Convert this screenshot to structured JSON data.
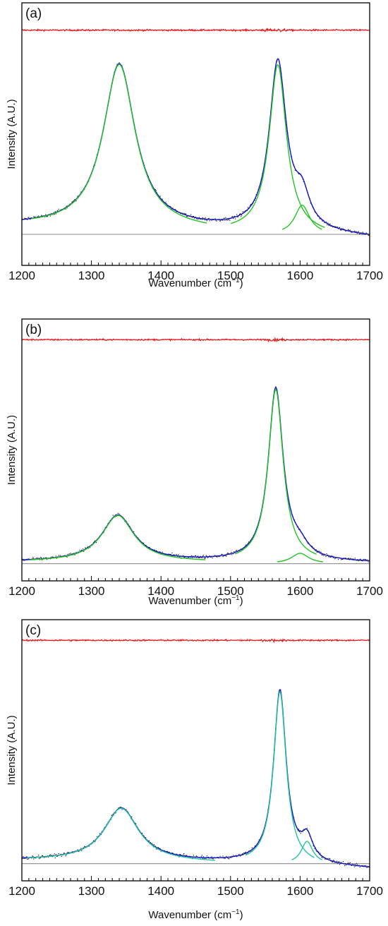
{
  "figure": {
    "panels": [
      {
        "label": "(a)",
        "xlabel": "Wavenumber (cm",
        "xlabel_sup": "−1",
        "xlabel_close": ")",
        "ylabel": "Intensity (A.U.)"
      },
      {
        "label": "(b)",
        "xlabel": "Wavenumber (cm",
        "xlabel_sup": "−1",
        "xlabel_close": ")",
        "ylabel": "Intensity (A.U.)"
      },
      {
        "label": "(c)",
        "xlabel": "Wavenumber (cm",
        "xlabel_sup": "−1",
        "xlabel_close": ")",
        "ylabel": "Intensity (A.U.)"
      }
    ]
  },
  "chart_data": [
    {
      "type": "line",
      "panel": "(a)",
      "xlim": [
        1200,
        1700
      ],
      "ylim": [
        -0.17,
        1.27
      ],
      "xticks": [
        1200,
        1300,
        1400,
        1500,
        1600,
        1700
      ],
      "xlabel": "Wavenumber (cm−1)",
      "ylabel": "Intensity (A.U.)",
      "grid": false,
      "baseline": 0,
      "residual_offset": 1.12,
      "peaks": [
        {
          "center": 1340,
          "height": 0.9,
          "hwhm": 28
        },
        {
          "center": 1568,
          "height": 0.92,
          "hwhm": 15
        },
        {
          "center": 1603,
          "height": 0.16,
          "hwhm": 13
        }
      ],
      "background": {
        "1200": 0.045,
        "1570": 0.01,
        "1700": -0.02
      },
      "colors": {
        "data": "#222222",
        "envelope": "#1414c8",
        "components": "#22c422",
        "residual": "#e41a1c",
        "baseline": "#999999"
      }
    },
    {
      "type": "line",
      "panel": "(b)",
      "xlim": [
        1200,
        1700
      ],
      "ylim": [
        -0.1,
        1.42
      ],
      "xticks": [
        1200,
        1300,
        1400,
        1500,
        1600,
        1700
      ],
      "xlabel": "Wavenumber (cm−1)",
      "ylabel": "Intensity (A.U.)",
      "grid": false,
      "baseline": 0,
      "residual_offset": 1.3,
      "peaks": [
        {
          "center": 1338,
          "height": 0.27,
          "hwhm": 28
        },
        {
          "center": 1565,
          "height": 1.0,
          "hwhm": 13
        },
        {
          "center": 1600,
          "height": 0.06,
          "hwhm": 15
        }
      ],
      "background": {
        "1200": 0.01,
        "1570": 0.01,
        "1700": 0.005
      },
      "colors": {
        "data": "#222222",
        "envelope": "#1414c8",
        "components": "#22c422",
        "residual": "#e41a1c",
        "baseline": "#999999"
      }
    },
    {
      "type": "line",
      "panel": "(c)",
      "xlim": [
        1200,
        1700
      ],
      "ylim": [
        -0.1,
        1.42
      ],
      "xticks": [
        1200,
        1300,
        1400,
        1500,
        1600,
        1700
      ],
      "xlabel": "Wavenumber (cm−1)",
      "ylabel": "Intensity (A.U.)",
      "grid": false,
      "baseline": 0,
      "residual_offset": 1.3,
      "peaks": [
        {
          "center": 1343,
          "height": 0.31,
          "hwhm": 30
        },
        {
          "center": 1571,
          "height": 1.0,
          "hwhm": 11
        },
        {
          "center": 1610,
          "height": 0.13,
          "hwhm": 10
        }
      ],
      "background": {
        "1200": 0.02,
        "1570": 0.0,
        "1700": -0.03
      },
      "colors": {
        "data": "#222222",
        "envelope": "#1414c8",
        "components": "#22c4a0",
        "residual": "#e41a1c",
        "baseline": "#999999"
      }
    }
  ]
}
